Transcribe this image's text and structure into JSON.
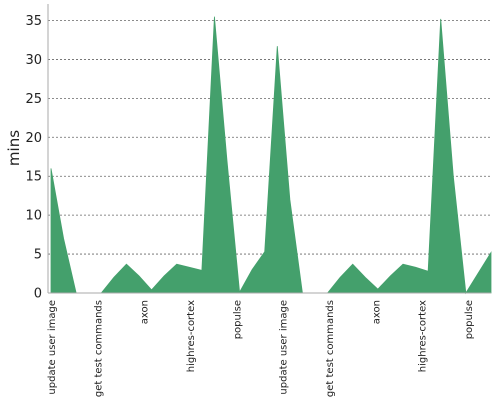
{
  "chart_data": {
    "type": "area",
    "title": "",
    "xlabel": "",
    "ylabel": "mins",
    "ylim": [
      0,
      35
    ],
    "yticks": [
      0,
      5,
      10,
      15,
      20,
      25,
      30,
      35
    ],
    "grid": "horizontal-dashed",
    "legend": "none",
    "fill_color": "#44a06c",
    "x_tick_labels": [
      "update user image",
      "get test commands",
      "axon",
      "highres-cortex",
      "populse",
      "update user image",
      "get test commands",
      "axon",
      "highres-cortex",
      "populse"
    ],
    "series": [
      {
        "values": [
          16,
          7,
          0,
          0,
          0,
          2,
          3.7,
          2.2,
          0.4,
          2.2,
          3.7,
          3.3,
          2.9,
          35.5,
          17,
          0.1,
          3,
          5.3,
          31.7,
          12,
          0,
          0,
          0,
          2,
          3.7,
          2,
          0.5,
          2.2,
          3.7,
          3.3,
          2.8,
          35.2,
          15,
          0,
          2.6,
          5.2
        ]
      }
    ]
  }
}
